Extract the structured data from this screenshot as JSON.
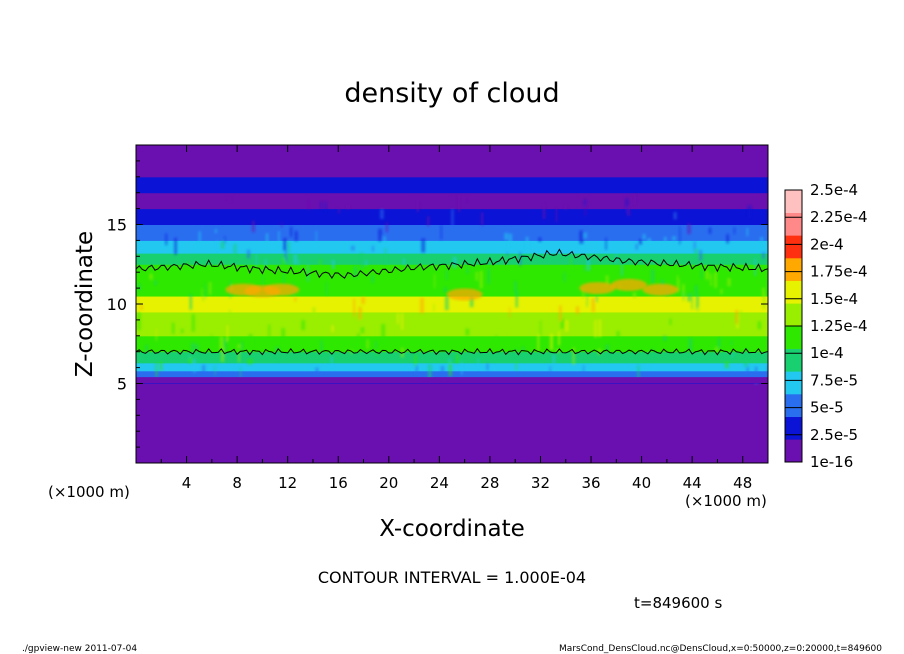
{
  "chart_data": {
    "type": "heatmap",
    "title": "density of cloud",
    "xlabel": "X-coordinate",
    "ylabel": "Z-coordinate",
    "x_unit_label": "(×1000 m)",
    "x_unit_label_right": "(×1000 m)",
    "xlim": [
      0,
      50
    ],
    "ylim": [
      0,
      20
    ],
    "x_ticks": [
      4,
      8,
      12,
      16,
      20,
      24,
      28,
      32,
      36,
      40,
      44,
      48
    ],
    "y_ticks": [
      5,
      10,
      15
    ],
    "colorbar": {
      "levels": [
        "1e-16",
        "2.5e-5",
        "5e-5",
        "7.5e-5",
        "1e-4",
        "1.25e-4",
        "1.5e-4",
        "1.75e-4",
        "2e-4",
        "2.25e-4",
        "2.5e-4"
      ],
      "colors": [
        "#6a10b0",
        "#0b14d6",
        "#2a6ef0",
        "#22c8f0",
        "#18d070",
        "#2ee800",
        "#9aee00",
        "#e6f200",
        "#ffa800",
        "#ff3010",
        "#ff8888",
        "#ffc0c0"
      ]
    },
    "field_profile": {
      "z": [
        0,
        5.0,
        5.3,
        5.8,
        6.3,
        7.0,
        8.0,
        9.5,
        10.5,
        12.5,
        13.2,
        14.0,
        15.0,
        16.0,
        17.0,
        18.0,
        20.0
      ],
      "level_index": [
        null,
        0,
        1,
        2,
        3,
        4,
        5,
        6,
        7,
        5,
        4,
        3,
        2,
        1,
        0,
        1,
        0
      ]
    },
    "contour_interval": "CONTOUR INTERVAL = 1.000E-04",
    "contour_value": 0.0001,
    "contour_lower_z": 7.0,
    "contour_upper_z": [
      12.2,
      12.5,
      12.1,
      11.8,
      12.3,
      12.6,
      13.2,
      12.7,
      12.4,
      12.2
    ],
    "time_label": "t=849600 s"
  },
  "footer": {
    "left": "./gpview-new  2011-07-04",
    "right": "MarsCond_DensCloud.nc@DensCloud,x=0:50000,z=0:20000,t=849600"
  }
}
